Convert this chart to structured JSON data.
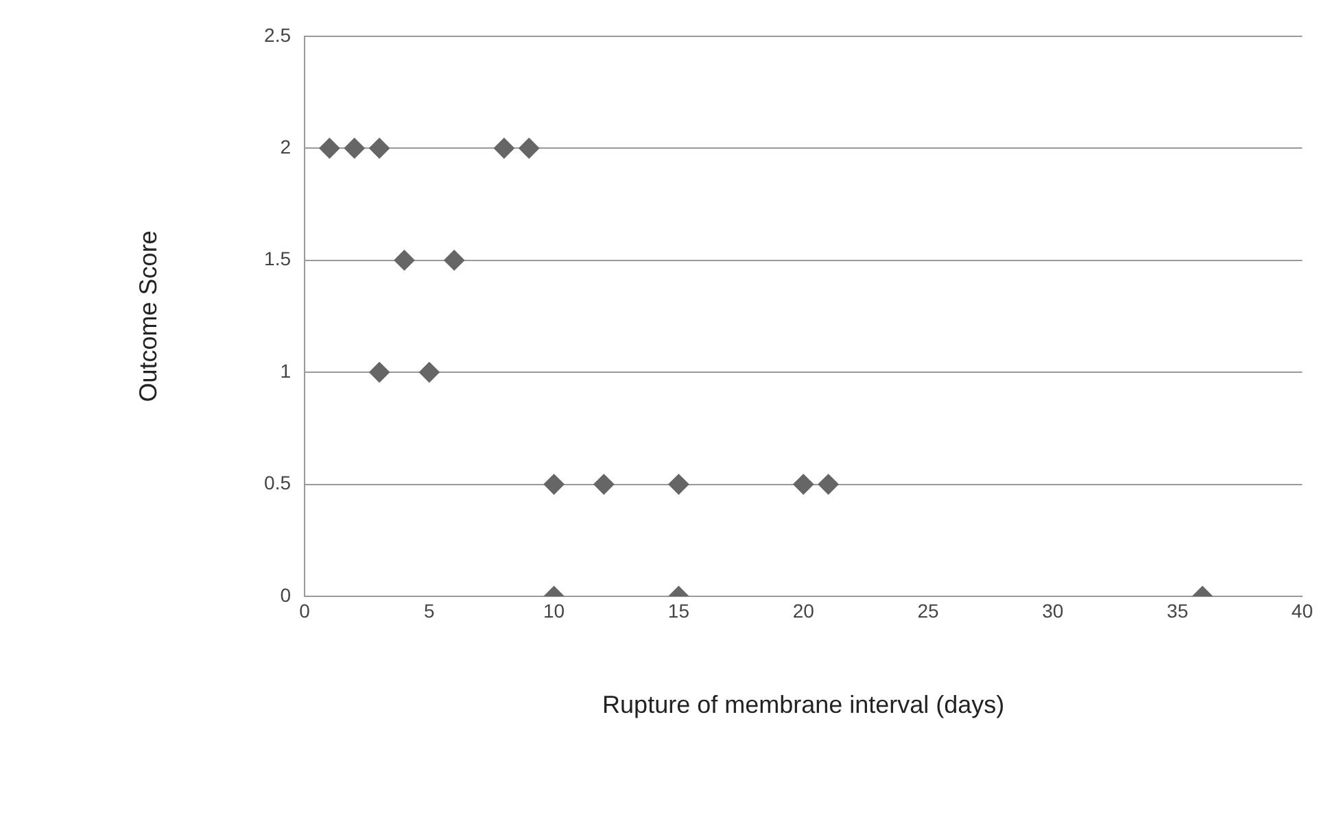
{
  "chart_data": {
    "type": "scatter",
    "xlabel": "Rupture of membrane interval (days)",
    "ylabel": "Outcome Score",
    "series": [
      {
        "color": "#666666",
        "x": [
          1,
          2,
          3,
          8,
          9,
          4,
          6,
          3,
          5,
          10,
          12,
          15,
          20,
          21,
          10,
          15,
          36
        ],
        "values": [
          2,
          2,
          2,
          2,
          2,
          1.5,
          1.5,
          1,
          1,
          0.5,
          0.5,
          0.5,
          0.5,
          0.5,
          0,
          0,
          0
        ]
      }
    ],
    "xlim": [
      0,
      40
    ],
    "xticks": [
      0,
      5,
      10,
      15,
      20,
      25,
      30,
      35,
      40
    ],
    "ylim": [
      0,
      2.5
    ],
    "yticks": [
      0,
      0.5,
      1,
      1.5,
      2,
      2.5
    ],
    "grid": "y",
    "legend": false,
    "marker": "diamond"
  }
}
